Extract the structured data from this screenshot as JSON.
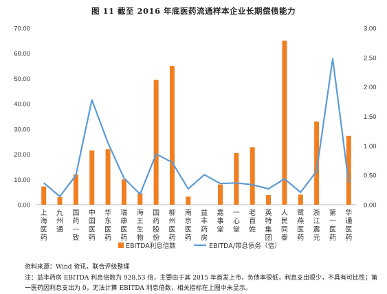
{
  "figure": {
    "title": "图 11  截至 2016 年底医药流通样本企业长期偿债能力"
  },
  "chart_data": {
    "type": "bar+line",
    "categories": [
      "上海医药",
      "九州通",
      "国药一致",
      "中国医药",
      "华东医药",
      "瑞康医药",
      "海王生物",
      "国药股份",
      "柳州医药",
      "南京医药",
      "益丰药房",
      "嘉事堂",
      "一心堂",
      "老百姓",
      "英特集团",
      "人民同泰",
      "鹭燕医药",
      "浙江震元",
      "第一医药",
      "华通医药"
    ],
    "category_labels": [
      "上\n海\n医\n药",
      "九\n州\n通",
      "国\n药\n一\n致",
      "中\n国\n医\n药",
      "华\n东\n医\n药",
      "瑞\n康\n医\n药",
      "海\n王\n生\n物",
      "国\n药\n股\n份",
      "柳\n州\n医\n药",
      "南\n京\n医\n药",
      "益\n丰\n药\n房",
      "嘉\n事\n堂",
      "一\n心\n堂",
      "老\n百\n姓",
      "英\n特\n集\n团",
      "人\n民\n同\n泰",
      "鹭\n燕\n医\n药",
      "浙\n江\n震\n元",
      "第\n一\n医\n药",
      "华\n通\n医\n药"
    ],
    "series": [
      {
        "name": "EBITDA利息倍数",
        "kind": "bar",
        "axis": "left",
        "color": "#F07F22",
        "values": [
          7.2,
          3.0,
          12.0,
          21.5,
          22.0,
          10.0,
          4.5,
          49.5,
          55.0,
          3.2,
          0,
          8.0,
          20.5,
          22.8,
          3.8,
          65.0,
          4.0,
          33.0,
          0,
          27.3
        ]
      },
      {
        "name": "EBITDA/带息债务（倍）",
        "kind": "line",
        "axis": "right",
        "color": "#5B9BD5",
        "values": [
          0.37,
          0.14,
          0.5,
          1.78,
          1.05,
          0.45,
          0.18,
          0.86,
          0.72,
          0.27,
          0.51,
          0.36,
          0.37,
          0.34,
          0.27,
          0.44,
          0.21,
          0.57,
          2.48,
          0.37
        ]
      }
    ],
    "y_left": {
      "min": 0,
      "max": 70,
      "step": 10,
      "tick_labels": [
        "0.00",
        "10.00",
        "20.00",
        "30.00",
        "40.00",
        "50.00",
        "60.00",
        "70.00"
      ]
    },
    "y_right": {
      "min": 0,
      "max": 3,
      "step": 0.5,
      "tick_labels": [
        "0.00",
        "0.50",
        "1.00",
        "1.50",
        "2.00",
        "2.50",
        "3.00"
      ]
    },
    "grid": false,
    "legend_position": "bottom"
  },
  "footer": {
    "source": "资料来源：Wind 资讯，联合评级整理",
    "note": "注：益丰药房 EBITDA 利息倍数为 928.53 倍，主要由于其 2015 年首发上市，负债率很低，利息支出很少，不具有可比性；第一医药因利息支出为 0，无法计算 EBITDA 利息倍数，相关指标在上图中未显示。"
  }
}
